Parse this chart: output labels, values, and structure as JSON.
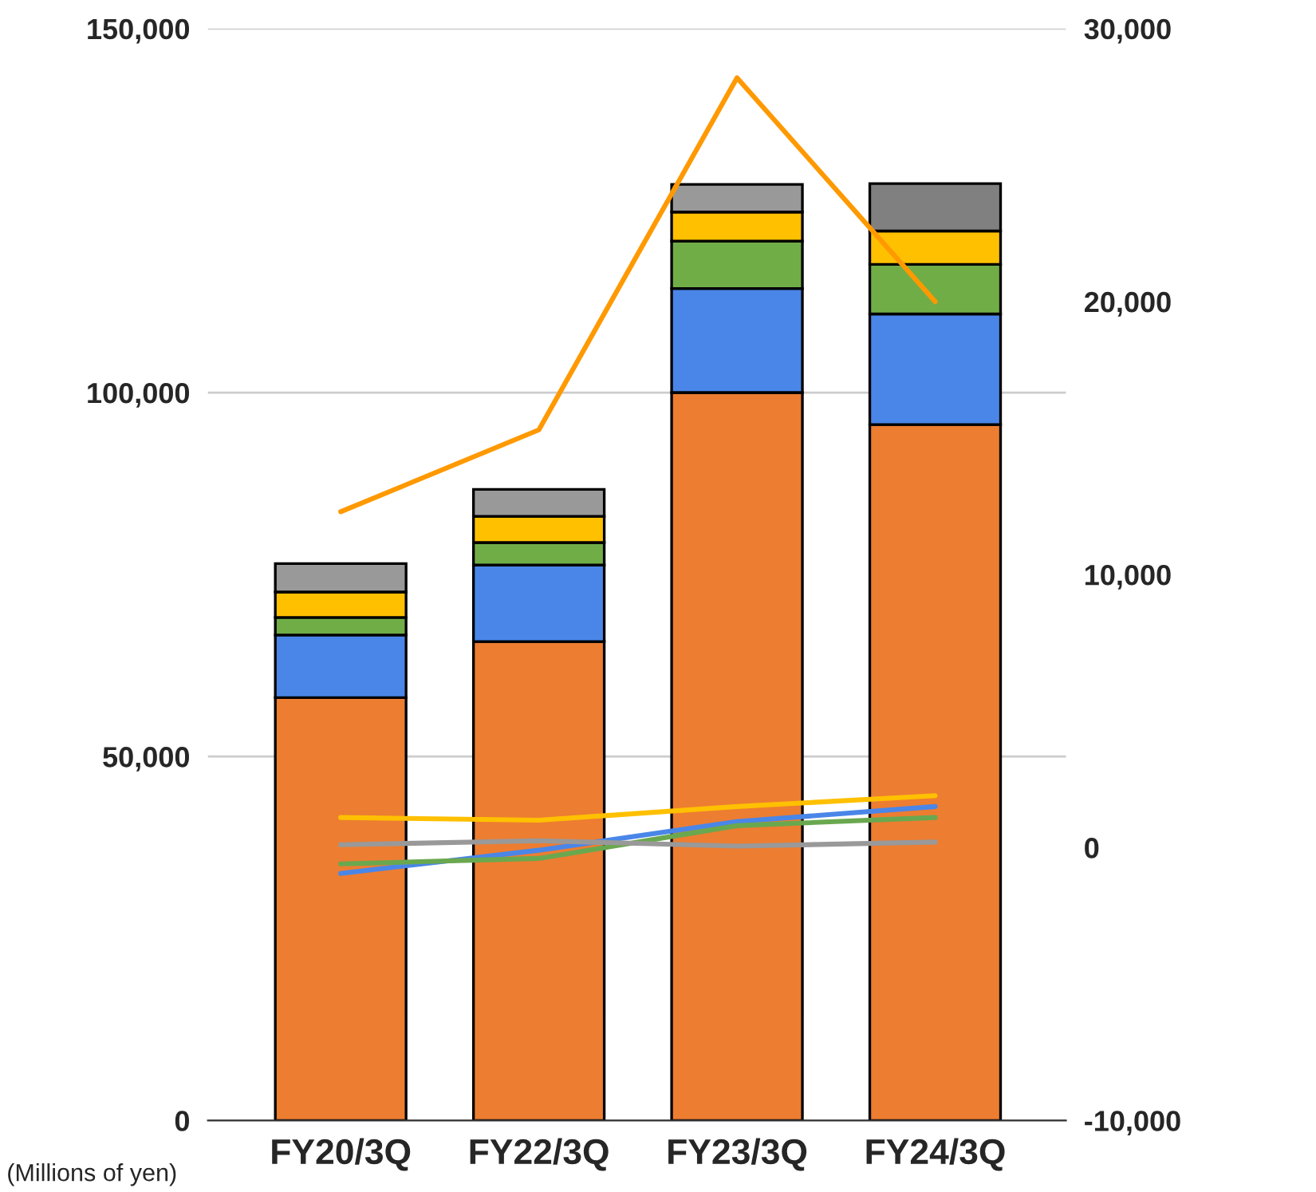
{
  "chart_data": {
    "type": "bar",
    "stacked": true,
    "categories": [
      "FY20/3Q",
      "FY22/3Q",
      "FY23/3Q",
      "FY24/3Q"
    ],
    "series": [
      {
        "color": "#ed7d31",
        "values": [
          58100,
          65800,
          100000,
          95600
        ]
      },
      {
        "color": "#4a86e8",
        "values": [
          8600,
          10500,
          14300,
          15200
        ]
      },
      {
        "color": "#70ad47",
        "values": [
          2400,
          3100,
          6500,
          6800
        ]
      },
      {
        "color": "#ffc000",
        "values": [
          3500,
          3600,
          4000,
          4600
        ]
      },
      {
        "colors": [
          "#999999",
          "#999999",
          "#999999",
          "#808080"
        ],
        "values": [
          3900,
          3700,
          3800,
          6500
        ]
      },
      {
        "type": "line",
        "axis": "y2",
        "color": "#ff9900",
        "values": [
          12300,
          15300,
          28200,
          20000
        ]
      },
      {
        "type": "line",
        "axis": "y2",
        "color": "#ffc000",
        "values": [
          1100,
          1000,
          1500,
          1900
        ]
      },
      {
        "type": "line",
        "axis": "y2",
        "color": "#4a86e8",
        "values": [
          -950,
          -100,
          950,
          1500
        ]
      },
      {
        "type": "line",
        "axis": "y2",
        "color": "#6aa84f",
        "values": [
          -600,
          -400,
          800,
          1100
        ]
      },
      {
        "type": "line",
        "axis": "y2",
        "color": "#999999",
        "values": [
          100,
          250,
          50,
          200
        ]
      }
    ],
    "ylim": [
      0,
      150000
    ],
    "yticks": [
      {
        "value": 0,
        "label": "0"
      },
      {
        "value": 50000,
        "label": "50,000"
      },
      {
        "value": 100000,
        "label": "100,000"
      },
      {
        "value": 150000,
        "label": "150,000"
      }
    ],
    "y2lim": [
      -10000,
      30000
    ],
    "y2ticks": [
      {
        "value": -10000,
        "label": "-10,000"
      },
      {
        "value": 0,
        "label": "0"
      },
      {
        "value": 10000,
        "label": "10,000"
      },
      {
        "value": 20000,
        "label": "20,000"
      },
      {
        "value": 30000,
        "label": "30,000"
      }
    ],
    "grid": "y",
    "legend": false,
    "marker": "none",
    "line_style": "solid",
    "annotations": [
      "(Millions of yen)"
    ]
  }
}
